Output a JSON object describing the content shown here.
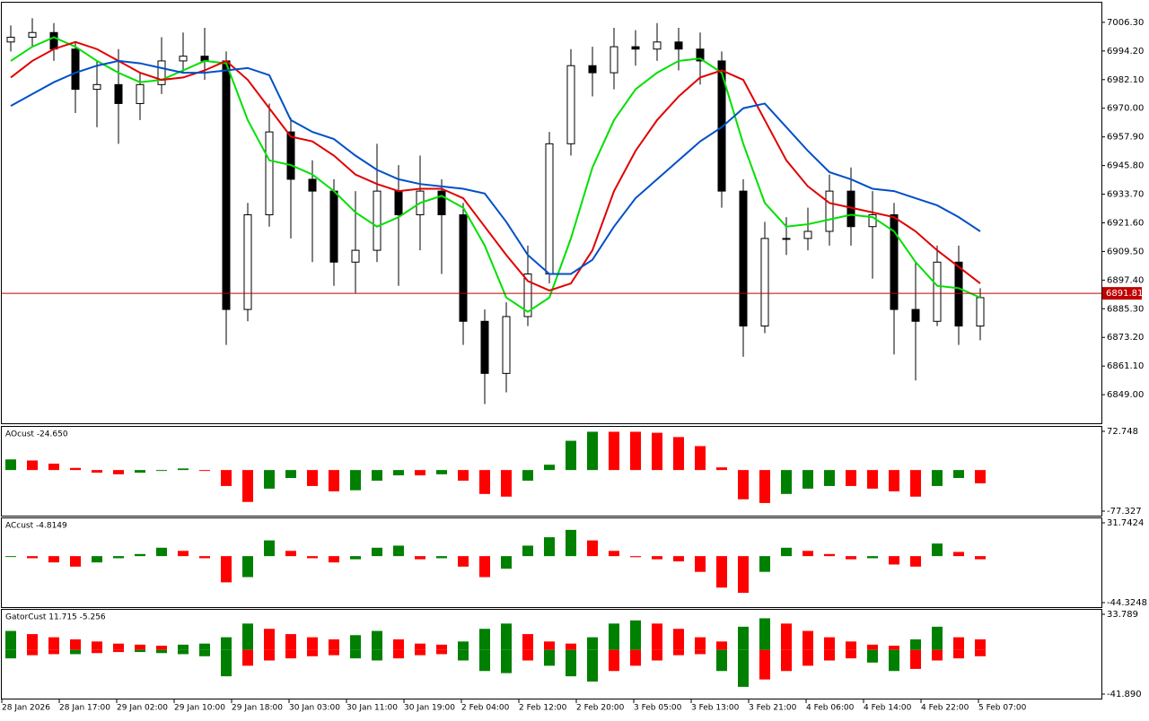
{
  "chart_data": [
    {
      "type": "candlestick",
      "ylim": [
        6837.3,
        7014.6
      ],
      "yticks": [
        {
          "value": 7006.3,
          "label": "7006.30"
        },
        {
          "value": 6994.2,
          "label": "6994.20"
        },
        {
          "value": 6982.1,
          "label": "6982.10"
        },
        {
          "value": 6970,
          "label": "6970.00"
        },
        {
          "value": 6957.9,
          "label": "6957.90"
        },
        {
          "value": 6945.8,
          "label": "6945.80"
        },
        {
          "value": 6933.7,
          "label": "6933.70"
        },
        {
          "value": 6921.6,
          "label": "6921.60"
        },
        {
          "value": 6909.5,
          "label": "6909.50"
        },
        {
          "value": 6897.4,
          "label": "6897.40"
        },
        {
          "value": 6885.3,
          "label": "6885.30"
        },
        {
          "value": 6873.2,
          "label": "6873.20"
        },
        {
          "value": 6861.1,
          "label": "6861.10"
        },
        {
          "value": 6849,
          "label": "6849.00"
        }
      ],
      "open": [
        6998,
        7000,
        7002,
        6995,
        6978,
        6980,
        6972,
        6980,
        6990,
        6992,
        6990,
        6885,
        6925,
        6960,
        6940,
        6935,
        6905,
        6910,
        6935,
        6925,
        6935,
        6925,
        6880,
        6858,
        6882,
        6900,
        6955,
        6988,
        6985,
        6996,
        6995,
        6998,
        6995,
        6990,
        6935,
        6878,
        6915,
        6915,
        6918,
        6935,
        6920,
        6925,
        6885,
        6880,
        6905,
        6878
      ],
      "high": [
        7005,
        7008,
        7006,
        6998,
        6990,
        6995,
        6985,
        7000,
        7002,
        7004,
        6994,
        6930,
        6972,
        6966,
        6948,
        6940,
        6935,
        6955,
        6946,
        6950,
        6940,
        6930,
        6885,
        6888,
        6912,
        6960,
        6995,
        6996,
        7004,
        7003,
        7006,
        7004,
        7002,
        6994,
        6940,
        6922,
        6924,
        6928,
        6942,
        6945,
        6935,
        6930,
        6905,
        6912,
        6912,
        6894
      ],
      "low": [
        6994,
        6996,
        6990,
        6968,
        6962,
        6955,
        6965,
        6976,
        6985,
        6982,
        6870,
        6880,
        6920,
        6915,
        6905,
        6895,
        6892,
        6905,
        6895,
        6910,
        6900,
        6870,
        6845,
        6850,
        6878,
        6896,
        6950,
        6975,
        6978,
        6988,
        6990,
        6986,
        6980,
        6928,
        6865,
        6875,
        6908,
        6910,
        6912,
        6912,
        6898,
        6866,
        6855,
        6878,
        6870,
        6872
      ],
      "close": [
        7000,
        7002,
        6995,
        6978,
        6980,
        6972,
        6980,
        6990,
        6992,
        6990,
        6885,
        6925,
        6960,
        6940,
        6935,
        6905,
        6910,
        6935,
        6925,
        6935,
        6925,
        6880,
        6858,
        6882,
        6900,
        6955,
        6988,
        6985,
        6996,
        6995,
        6998,
        6995,
        6990,
        6935,
        6878,
        6915,
        6915,
        6918,
        6935,
        6920,
        6925,
        6885,
        6880,
        6905,
        6878,
        6890
      ],
      "series": [
        {
          "color": "#00e000",
          "values": [
            6990,
            6996,
            7000,
            6996,
            6990,
            6985,
            6981,
            6982,
            6986,
            6990,
            6989,
            6965,
            6948,
            6946,
            6942,
            6935,
            6926,
            6920,
            6924,
            6930,
            6933,
            6928,
            6912,
            6890,
            6884,
            6890,
            6915,
            6945,
            6965,
            6978,
            6985,
            6990,
            6991,
            6985,
            6955,
            6930,
            6920,
            6921,
            6923,
            6925,
            6924,
            6918,
            6905,
            6895,
            6894,
            6890
          ]
        },
        {
          "color": "#e00000",
          "values": [
            6983,
            6990,
            6995,
            6998,
            6995,
            6990,
            6985,
            6982,
            6983,
            6986,
            6990,
            6982,
            6970,
            6958,
            6956,
            6950,
            6942,
            6938,
            6935,
            6936,
            6936,
            6932,
            6920,
            6908,
            6897,
            6893,
            6896,
            6910,
            6935,
            6952,
            6965,
            6975,
            6983,
            6986,
            6982,
            6965,
            6948,
            6937,
            6930,
            6928,
            6926,
            6924,
            6918,
            6910,
            6903,
            6896
          ]
        },
        {
          "color": "#0050c8",
          "values": [
            6971,
            6976,
            6981,
            6985,
            6988,
            6990,
            6989,
            6987,
            6985,
            6985,
            6986,
            6987,
            6984,
            6965,
            6960,
            6957,
            6950,
            6944,
            6940,
            6938,
            6937,
            6936,
            6934,
            6922,
            6908,
            6900,
            6900,
            6906,
            6920,
            6932,
            6940,
            6948,
            6956,
            6962,
            6970,
            6972,
            6962,
            6952,
            6943,
            6940,
            6936,
            6935,
            6932,
            6929,
            6924,
            6918
          ]
        }
      ],
      "current_price": 6891.81,
      "current_price_color": "#c00000"
    },
    {
      "type": "histogram",
      "title": "AOcust -24.650",
      "ylim": [
        -77.327,
        72.748
      ],
      "yticks": [
        72.748,
        -77.327
      ],
      "up_color": "#008000",
      "down_color": "#ff0000",
      "values": [
        20,
        18,
        12,
        4,
        -5,
        -8,
        -5,
        0,
        3,
        0,
        -30,
        -60,
        -35,
        -15,
        -30,
        -40,
        -38,
        -20,
        -10,
        -10,
        -8,
        -20,
        -45,
        -50,
        -20,
        10,
        55,
        72,
        72,
        72,
        70,
        62,
        45,
        5,
        -55,
        -62,
        -45,
        -35,
        -30,
        -30,
        -35,
        -40,
        -50,
        -30,
        -15,
        -25
      ]
    },
    {
      "type": "histogram",
      "title": "ACcust -4.8149",
      "ylim": [
        -44.3248,
        31.7424
      ],
      "yticks": [
        31.7424,
        -44.3248
      ],
      "up_color": "#008000",
      "down_color": "#ff0000",
      "values": [
        0,
        -2,
        -6,
        -10,
        -6,
        -2,
        2,
        8,
        5,
        -2,
        -25,
        -20,
        15,
        5,
        -2,
        -6,
        -3,
        8,
        10,
        -3,
        -2,
        -10,
        -20,
        -12,
        10,
        18,
        25,
        15,
        5,
        -1,
        -3,
        -5,
        -15,
        -30,
        -35,
        -15,
        8,
        5,
        2,
        -3,
        -2,
        -8,
        -10,
        12,
        4,
        -3
      ]
    },
    {
      "type": "gator",
      "title": "GatorCust 11.715 -5.256",
      "ylim": [
        -41.89,
        33.789
      ],
      "yticks": [
        33.789,
        {
          "value": -41.89,
          "label": "-41.890"
        }
      ],
      "up_color": "#008000",
      "down_color": "#ff0000",
      "upper": [
        18,
        15,
        12,
        10,
        8,
        6,
        5,
        4,
        5,
        6,
        12,
        25,
        20,
        15,
        12,
        10,
        14,
        18,
        10,
        6,
        5,
        8,
        20,
        25,
        15,
        8,
        6,
        12,
        25,
        28,
        25,
        20,
        12,
        8,
        22,
        30,
        25,
        18,
        12,
        8,
        5,
        4,
        10,
        22,
        12,
        10
      ],
      "lower": [
        -8,
        -5,
        -4,
        -4,
        -3,
        -2,
        -2,
        -3,
        -4,
        -6,
        -25,
        -15,
        -10,
        -8,
        -6,
        -5,
        -8,
        -10,
        -8,
        -5,
        -4,
        -10,
        -20,
        -22,
        -10,
        -15,
        -25,
        -30,
        -20,
        -15,
        -10,
        -5,
        -4,
        -20,
        -35,
        -28,
        -20,
        -15,
        -10,
        -8,
        -12,
        -20,
        -18,
        -10,
        -8,
        -6
      ]
    }
  ],
  "time_labels": [
    "28 Jan 2026",
    "28 Jan 17:00",
    "29 Jan 02:00",
    "29 Jan 10:00",
    "29 Jan 18:00",
    "30 Jan 03:00",
    "30 Jan 11:00",
    "30 Jan 19:00",
    "2 Feb 04:00",
    "2 Feb 12:00",
    "2 Feb 20:00",
    "3 Feb 05:00",
    "3 Feb 13:00",
    "3 Feb 21:00",
    "4 Feb 06:00",
    "4 Feb 14:00",
    "4 Feb 22:00",
    "5 Feb 07:00"
  ]
}
